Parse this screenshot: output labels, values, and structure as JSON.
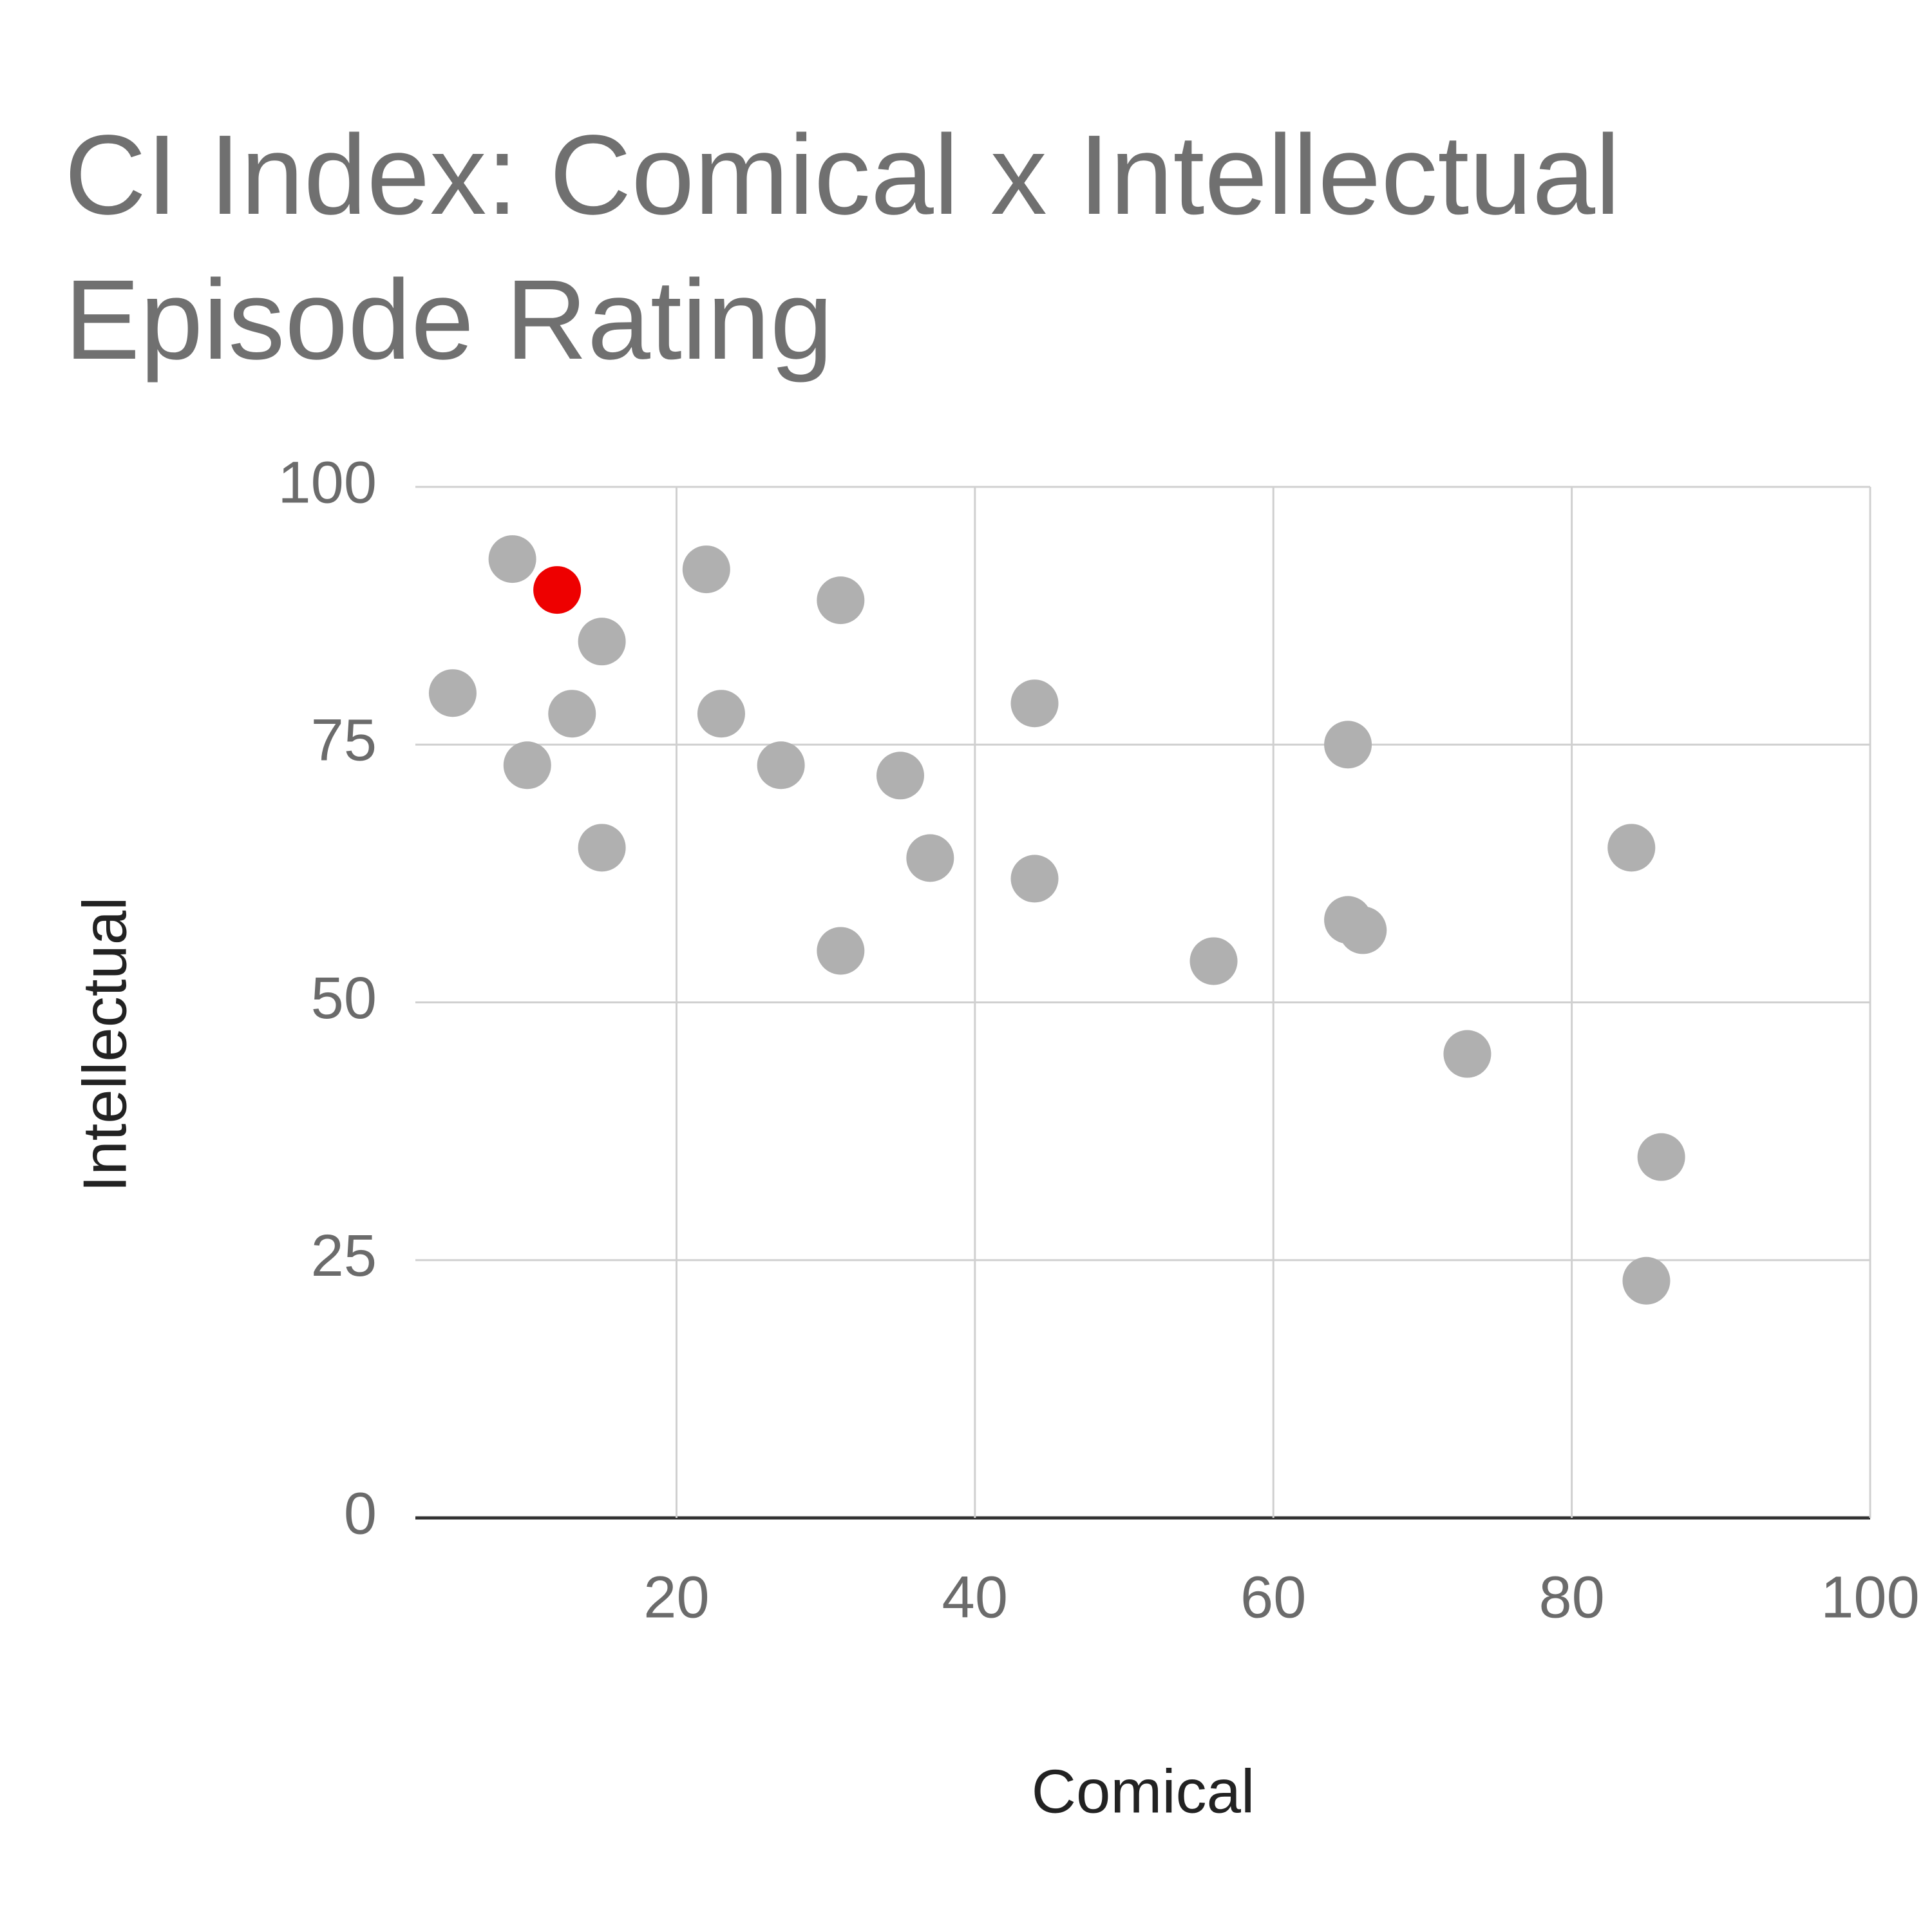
{
  "chart_data": {
    "type": "scatter",
    "title": "CI Index: Comical x Intellectual Episode Rating",
    "x_label": "Comical",
    "y_label": "Intellectual",
    "series": [
      {
        "color": "#b0b0b0",
        "x": [
          9,
          15,
          5,
          13,
          10,
          15,
          22,
          23,
          27,
          31,
          35,
          37,
          31,
          44,
          44,
          56,
          65,
          65,
          66,
          73,
          84,
          86,
          85
        ],
        "values": [
          93,
          85,
          80,
          78,
          73,
          65,
          92,
          78,
          73,
          89,
          72,
          64,
          55,
          79,
          62,
          54,
          75,
          58,
          57,
          45,
          65,
          35,
          23
        ]
      },
      {
        "color": "#ee0000",
        "x": [
          12
        ],
        "values": [
          90
        ]
      }
    ],
    "xlim": [
      2.5,
      100
    ],
    "xticks": [
      20,
      40,
      60,
      80,
      100
    ],
    "ylim": [
      0,
      100
    ],
    "yticks": [
      0,
      25,
      50,
      75,
      100
    ],
    "grid": true
  }
}
